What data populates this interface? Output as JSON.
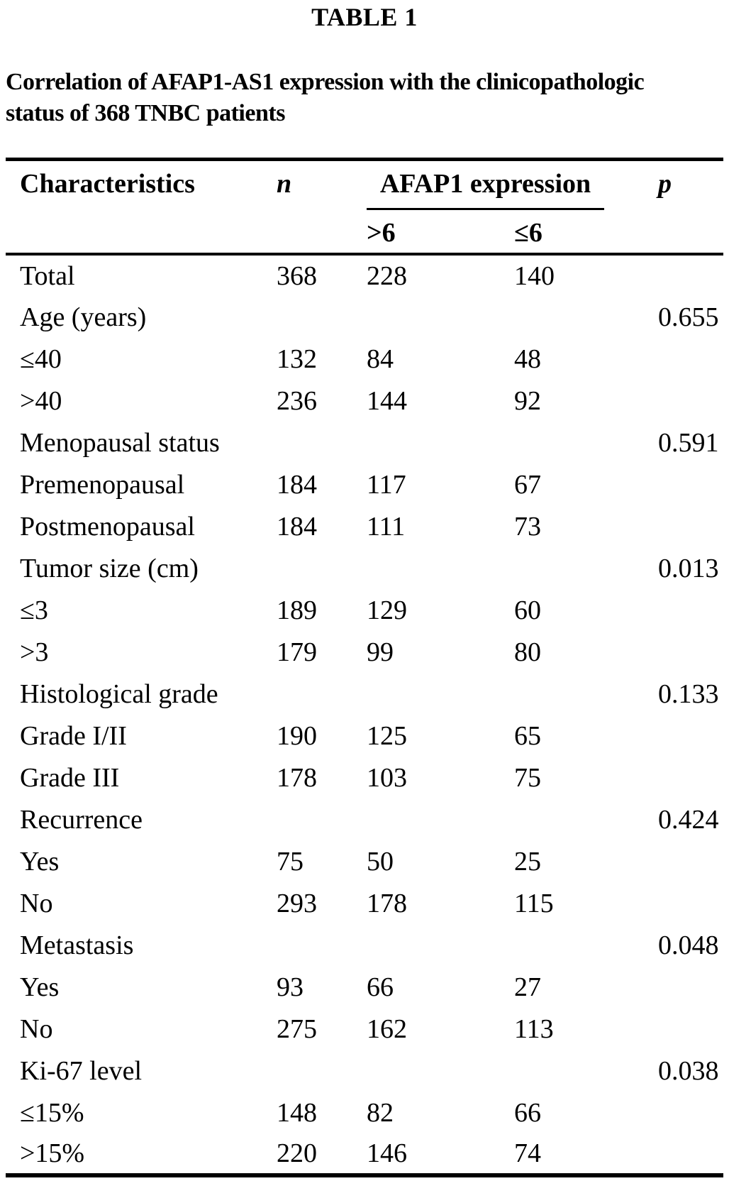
{
  "title": "TABLE 1",
  "caption_lines": [
    "Correlation of AFAP1-AS1 expression with the clinicopathologic",
    "status of 368 TNBC patients"
  ],
  "table": {
    "header": {
      "characteristics": "Characteristics",
      "n": "n",
      "afap1_expression": "AFAP1 expression",
      "sub_gt": ">6",
      "sub_le": "≤6",
      "p": "p"
    },
    "rows": [
      {
        "label": "Total",
        "n": "368",
        "gt6": "228",
        "le6": "140",
        "p": ""
      },
      {
        "label": "Age (years)",
        "n": "",
        "gt6": "",
        "le6": "",
        "p": "0.655"
      },
      {
        "label": "≤40",
        "n": "132",
        "gt6": "84",
        "le6": "48",
        "p": ""
      },
      {
        "label": ">40",
        "n": "236",
        "gt6": "144",
        "le6": "92",
        "p": ""
      },
      {
        "label": "Menopausal status",
        "n": "",
        "gt6": "",
        "le6": "",
        "p": "0.591"
      },
      {
        "label": "Premenopausal",
        "n": "184",
        "gt6": "117",
        "le6": "67",
        "p": ""
      },
      {
        "label": "Postmenopausal",
        "n": "184",
        "gt6": "111",
        "le6": "73",
        "p": ""
      },
      {
        "label": "Tumor size (cm)",
        "n": "",
        "gt6": "",
        "le6": "",
        "p": "0.013"
      },
      {
        "label": "≤3",
        "n": "189",
        "gt6": "129",
        "le6": "60",
        "p": ""
      },
      {
        "label": ">3",
        "n": "179",
        "gt6": "99",
        "le6": "80",
        "p": ""
      },
      {
        "label": "Histological grade",
        "n": "",
        "gt6": "",
        "le6": "",
        "p": "0.133"
      },
      {
        "label": "Grade I/II",
        "n": "190",
        "gt6": "125",
        "le6": "65",
        "p": ""
      },
      {
        "label": "Grade III",
        "n": "178",
        "gt6": "103",
        "le6": "75",
        "p": ""
      },
      {
        "label": "Recurrence",
        "n": "",
        "gt6": "",
        "le6": "",
        "p": "0.424"
      },
      {
        "label": "Yes",
        "n": "75",
        "gt6": "50",
        "le6": "25",
        "p": ""
      },
      {
        "label": "No",
        "n": "293",
        "gt6": "178",
        "le6": "115",
        "p": ""
      },
      {
        "label": "Metastasis",
        "n": "",
        "gt6": "",
        "le6": "",
        "p": "0.048"
      },
      {
        "label": "Yes",
        "n": "93",
        "gt6": "66",
        "le6": "27",
        "p": ""
      },
      {
        "label": "No",
        "n": "275",
        "gt6": "162",
        "le6": "113",
        "p": ""
      },
      {
        "label": "Ki-67 level",
        "n": "",
        "gt6": "",
        "le6": "",
        "p": "0.038"
      },
      {
        "label": "≤15%",
        "n": "148",
        "gt6": "82",
        "le6": "66",
        "p": ""
      },
      {
        "label": ">15%",
        "n": "220",
        "gt6": "146",
        "le6": "74",
        "p": ""
      }
    ]
  }
}
